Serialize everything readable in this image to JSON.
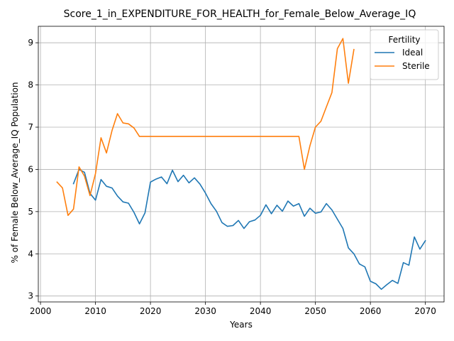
{
  "chart_data": {
    "type": "line",
    "title": "Score_1_in_EXPENDITURE_FOR_HEALTH_for_Female_Below_Average_IQ",
    "xlabel": "Years",
    "ylabel": "% of Female Below_Average_IQ Population",
    "xlim": [
      1999.6,
      2073.4
    ],
    "ylim": [
      2.86,
      9.39
    ],
    "xticks": [
      2000,
      2010,
      2020,
      2030,
      2040,
      2050,
      2060,
      2070
    ],
    "yticks": [
      3,
      4,
      5,
      6,
      7,
      8,
      9
    ],
    "grid": true,
    "legend": {
      "title": "Fertility",
      "position": "top-right"
    },
    "series": [
      {
        "name": "Ideal",
        "color": "#1f77b4",
        "x": [
          2006,
          2007,
          2008,
          2009,
          2010,
          2011,
          2012,
          2013,
          2014,
          2015,
          2016,
          2017,
          2018,
          2019,
          2020,
          2021,
          2022,
          2023,
          2024,
          2025,
          2026,
          2027,
          2028,
          2029,
          2030,
          2031,
          2032,
          2033,
          2034,
          2035,
          2036,
          2037,
          2038,
          2039,
          2040,
          2041,
          2042,
          2043,
          2044,
          2045,
          2046,
          2047,
          2048,
          2049,
          2050,
          2051,
          2052,
          2053,
          2054,
          2055,
          2056,
          2057,
          2058,
          2059,
          2060,
          2061,
          2062,
          2063,
          2064,
          2065,
          2066,
          2067,
          2068,
          2069,
          2070
        ],
        "y": [
          5.66,
          6.0,
          5.93,
          5.43,
          5.27,
          5.76,
          5.6,
          5.56,
          5.37,
          5.23,
          5.2,
          4.98,
          4.71,
          4.97,
          5.7,
          5.77,
          5.82,
          5.66,
          5.98,
          5.71,
          5.86,
          5.68,
          5.8,
          5.65,
          5.44,
          5.19,
          5.01,
          4.74,
          4.65,
          4.67,
          4.79,
          4.6,
          4.76,
          4.8,
          4.91,
          5.16,
          4.95,
          5.15,
          5.01,
          5.25,
          5.13,
          5.19,
          4.89,
          5.08,
          4.96,
          4.99,
          5.19,
          5.04,
          4.82,
          4.6,
          4.14,
          4.0,
          3.76,
          3.69,
          3.35,
          3.29,
          3.16,
          3.27,
          3.37,
          3.3,
          3.79,
          3.73,
          4.4,
          4.11,
          4.31
        ]
      },
      {
        "name": "Sterile",
        "color": "#ff7f0e",
        "x": [
          2003,
          2004,
          2005,
          2006,
          2007,
          2008,
          2009,
          2010,
          2011,
          2012,
          2013,
          2014,
          2015,
          2016,
          2017,
          2018,
          2019,
          2020,
          2021,
          2022,
          2023,
          2024,
          2025,
          2026,
          2027,
          2028,
          2029,
          2030,
          2031,
          2032,
          2033,
          2034,
          2035,
          2036,
          2037,
          2038,
          2039,
          2040,
          2041,
          2042,
          2043,
          2044,
          2045,
          2046,
          2047,
          2048,
          2049,
          2050,
          2051,
          2052,
          2053,
          2054,
          2055,
          2056,
          2057
        ],
        "y": [
          5.7,
          5.56,
          4.91,
          5.06,
          6.06,
          5.84,
          5.38,
          5.9,
          6.75,
          6.39,
          6.92,
          7.32,
          7.1,
          7.08,
          6.98,
          6.78,
          6.78,
          6.78,
          6.78,
          6.78,
          6.78,
          6.78,
          6.78,
          6.78,
          6.78,
          6.78,
          6.78,
          6.78,
          6.78,
          6.78,
          6.78,
          6.78,
          6.78,
          6.78,
          6.78,
          6.78,
          6.78,
          6.78,
          6.78,
          6.78,
          6.78,
          6.78,
          6.78,
          6.78,
          6.78,
          6.0,
          6.56,
          7.0,
          7.14,
          7.48,
          7.82,
          8.86,
          9.1,
          8.04,
          8.84
        ]
      }
    ]
  }
}
